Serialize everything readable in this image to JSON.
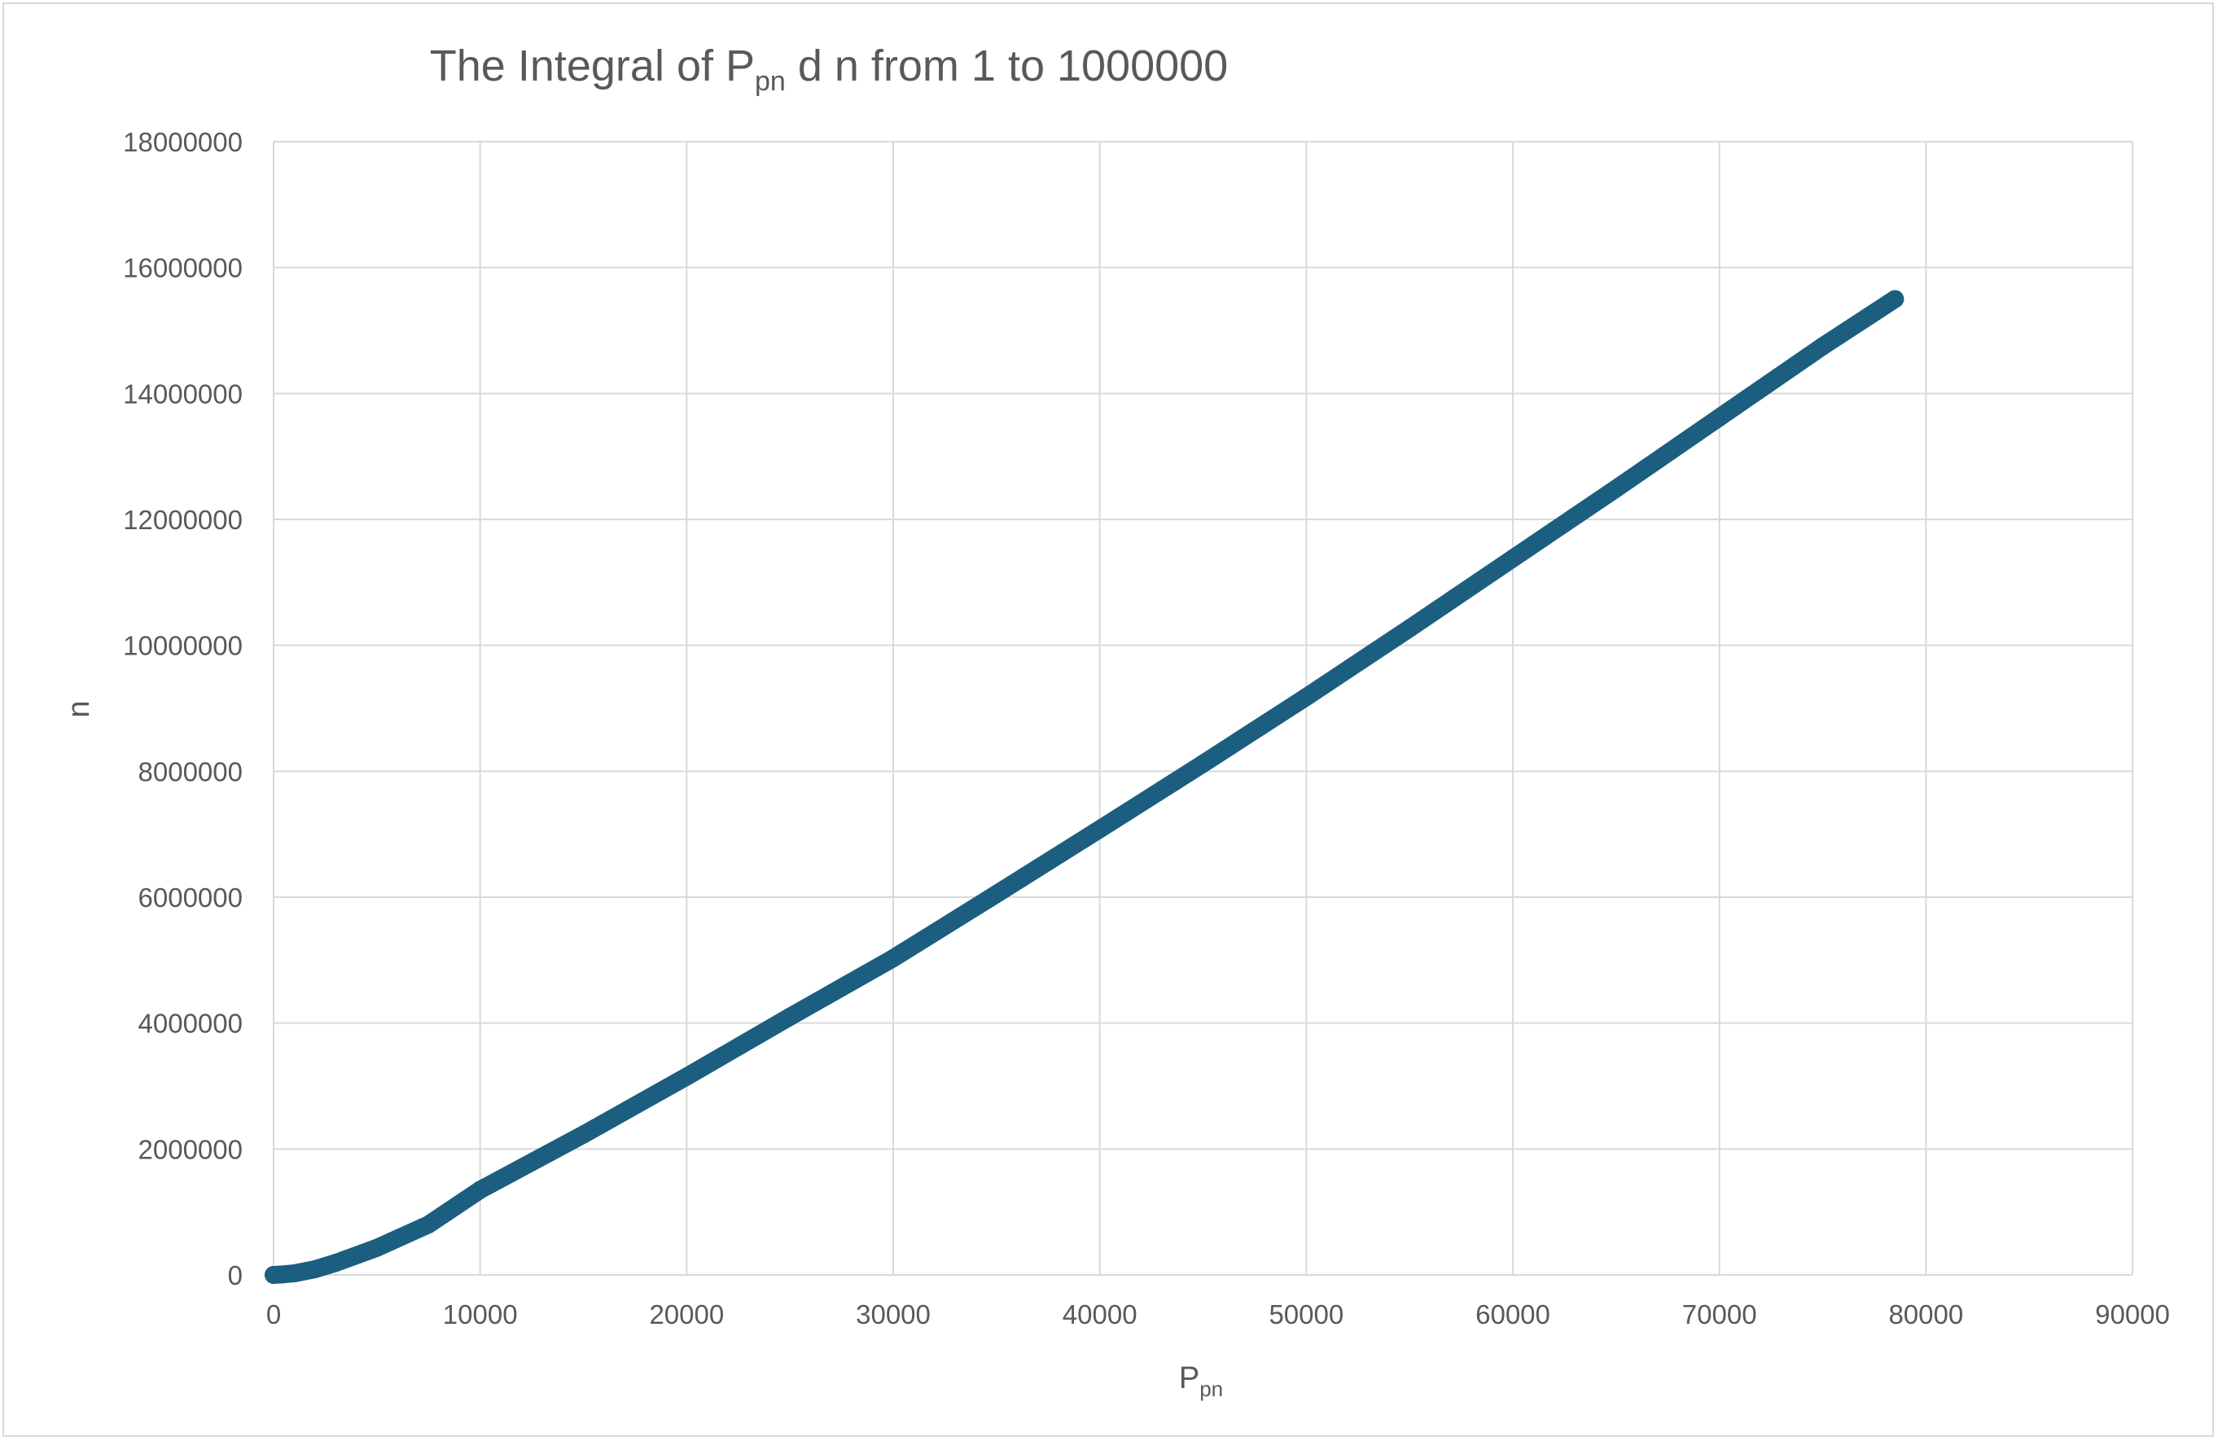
{
  "chart_data": {
    "type": "scatter",
    "title": {
      "prefix": "The Integral of P",
      "subscript": "pn",
      "suffix": " d n from 1 to 1000000"
    },
    "xlabel": {
      "main": "P",
      "subscript": "pn"
    },
    "ylabel": "n",
    "xlim": [
      0,
      90000
    ],
    "ylim": [
      0,
      18000000
    ],
    "x_ticks": [
      0,
      10000,
      20000,
      30000,
      40000,
      50000,
      60000,
      70000,
      80000,
      90000
    ],
    "x_tick_labels": [
      "0",
      "10000",
      "20000",
      "30000",
      "40000",
      "50000",
      "60000",
      "70000",
      "80000",
      "90000"
    ],
    "y_ticks": [
      0,
      2000000,
      4000000,
      6000000,
      8000000,
      10000000,
      12000000,
      14000000,
      16000000,
      18000000
    ],
    "y_tick_labels": [
      "0",
      "2000000",
      "4000000",
      "6000000",
      "8000000",
      "10000000",
      "12000000",
      "14000000",
      "16000000",
      "18000000"
    ],
    "grid": true,
    "legend": "none",
    "series": [
      {
        "color": "#1b5e80",
        "points": [
          [
            0,
            0
          ],
          [
            500,
            10000
          ],
          [
            1000,
            25000
          ],
          [
            2000,
            90000
          ],
          [
            3000,
            190000
          ],
          [
            5000,
            430000
          ],
          [
            7500,
            800000
          ],
          [
            10000,
            1350000
          ],
          [
            15000,
            2230000
          ],
          [
            20000,
            3150000
          ],
          [
            25000,
            4100000
          ],
          [
            30000,
            5030000
          ],
          [
            35000,
            6050000
          ],
          [
            40000,
            7080000
          ],
          [
            45000,
            8120000
          ],
          [
            50000,
            9180000
          ],
          [
            55000,
            10270000
          ],
          [
            60000,
            11380000
          ],
          [
            65000,
            12490000
          ],
          [
            70000,
            13620000
          ],
          [
            75000,
            14750000
          ],
          [
            78500,
            15500000
          ]
        ]
      }
    ]
  }
}
